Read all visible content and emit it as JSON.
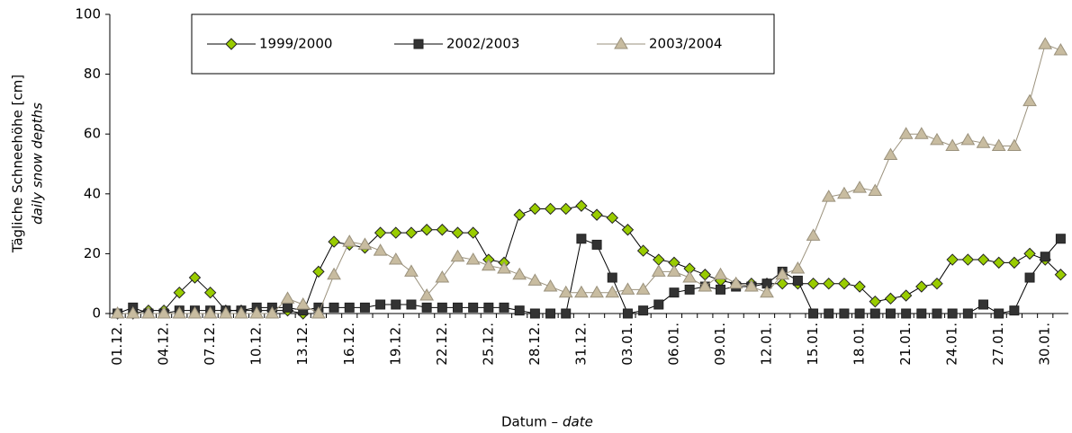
{
  "chart_data": {
    "type": "line",
    "y_label": "Tägliche Schneehöhe [cm]",
    "y_label_en": "daily snow depths",
    "x_label": "Datum –",
    "x_label_en": "date",
    "categories": [
      "01.12.",
      null,
      null,
      "04.12.",
      null,
      null,
      "07.12.",
      null,
      null,
      "10.12.",
      null,
      null,
      "13.12.",
      null,
      null,
      "16.12.",
      null,
      null,
      "19.12.",
      null,
      null,
      "22.12.",
      null,
      null,
      "25.12.",
      null,
      null,
      "28.12.",
      null,
      null,
      "31.12.",
      null,
      null,
      "03.01.",
      null,
      null,
      "06.01.",
      null,
      null,
      "09.01.",
      null,
      null,
      "12.01.",
      null,
      null,
      "15.01.",
      null,
      null,
      "18.01.",
      null,
      null,
      "21.01.",
      null,
      null,
      "24.01.",
      null,
      null,
      "27.01.",
      null,
      null,
      "30.01.",
      null
    ],
    "series": [
      {
        "name": "1999/2000",
        "color": "#99cc00",
        "marker": "diamond",
        "values": [
          0,
          0,
          1,
          1,
          7,
          12,
          7,
          1,
          1,
          1,
          1,
          1,
          0,
          14,
          24,
          23,
          22,
          27,
          27,
          27,
          28,
          28,
          27,
          27,
          18,
          17,
          33,
          35,
          35,
          35,
          36,
          33,
          32,
          28,
          21,
          18,
          17,
          15,
          13,
          11,
          10,
          10,
          10,
          10,
          10,
          10,
          10,
          10,
          9,
          4,
          5,
          6,
          9,
          10,
          18,
          18,
          18,
          17,
          17,
          20,
          18,
          13
        ]
      },
      {
        "name": "2002/2003",
        "color": "#333333",
        "marker": "square",
        "values": [
          0,
          2,
          0,
          0,
          1,
          1,
          1,
          1,
          1,
          2,
          2,
          2,
          1,
          2,
          2,
          2,
          2,
          3,
          3,
          3,
          2,
          2,
          2,
          2,
          2,
          2,
          1,
          0,
          0,
          0,
          25,
          23,
          12,
          0,
          1,
          3,
          7,
          8,
          9,
          8,
          9,
          9,
          10,
          14,
          11,
          0,
          0,
          0,
          0,
          0,
          0,
          0,
          0,
          0,
          0,
          0,
          3,
          0,
          1,
          12,
          19,
          25
        ]
      },
      {
        "name": "2003/2004",
        "color": "#c8bca0",
        "marker": "triangle",
        "values": [
          0,
          0,
          0,
          0,
          0,
          0,
          0,
          0,
          0,
          0,
          0,
          5,
          3,
          0,
          13,
          24,
          23,
          21,
          18,
          14,
          6,
          12,
          19,
          18,
          16,
          15,
          13,
          11,
          9,
          7,
          7,
          7,
          7,
          8,
          8,
          14,
          14,
          12,
          9,
          13,
          10,
          9,
          7,
          13,
          15,
          26,
          39,
          40,
          42,
          41,
          53,
          60,
          60,
          58,
          56,
          58,
          57,
          56,
          56,
          71,
          90,
          88
        ]
      }
    ],
    "ylim": [
      0,
      100
    ],
    "yticks": [
      0,
      20,
      40,
      60,
      80,
      100
    ],
    "grid": false
  }
}
